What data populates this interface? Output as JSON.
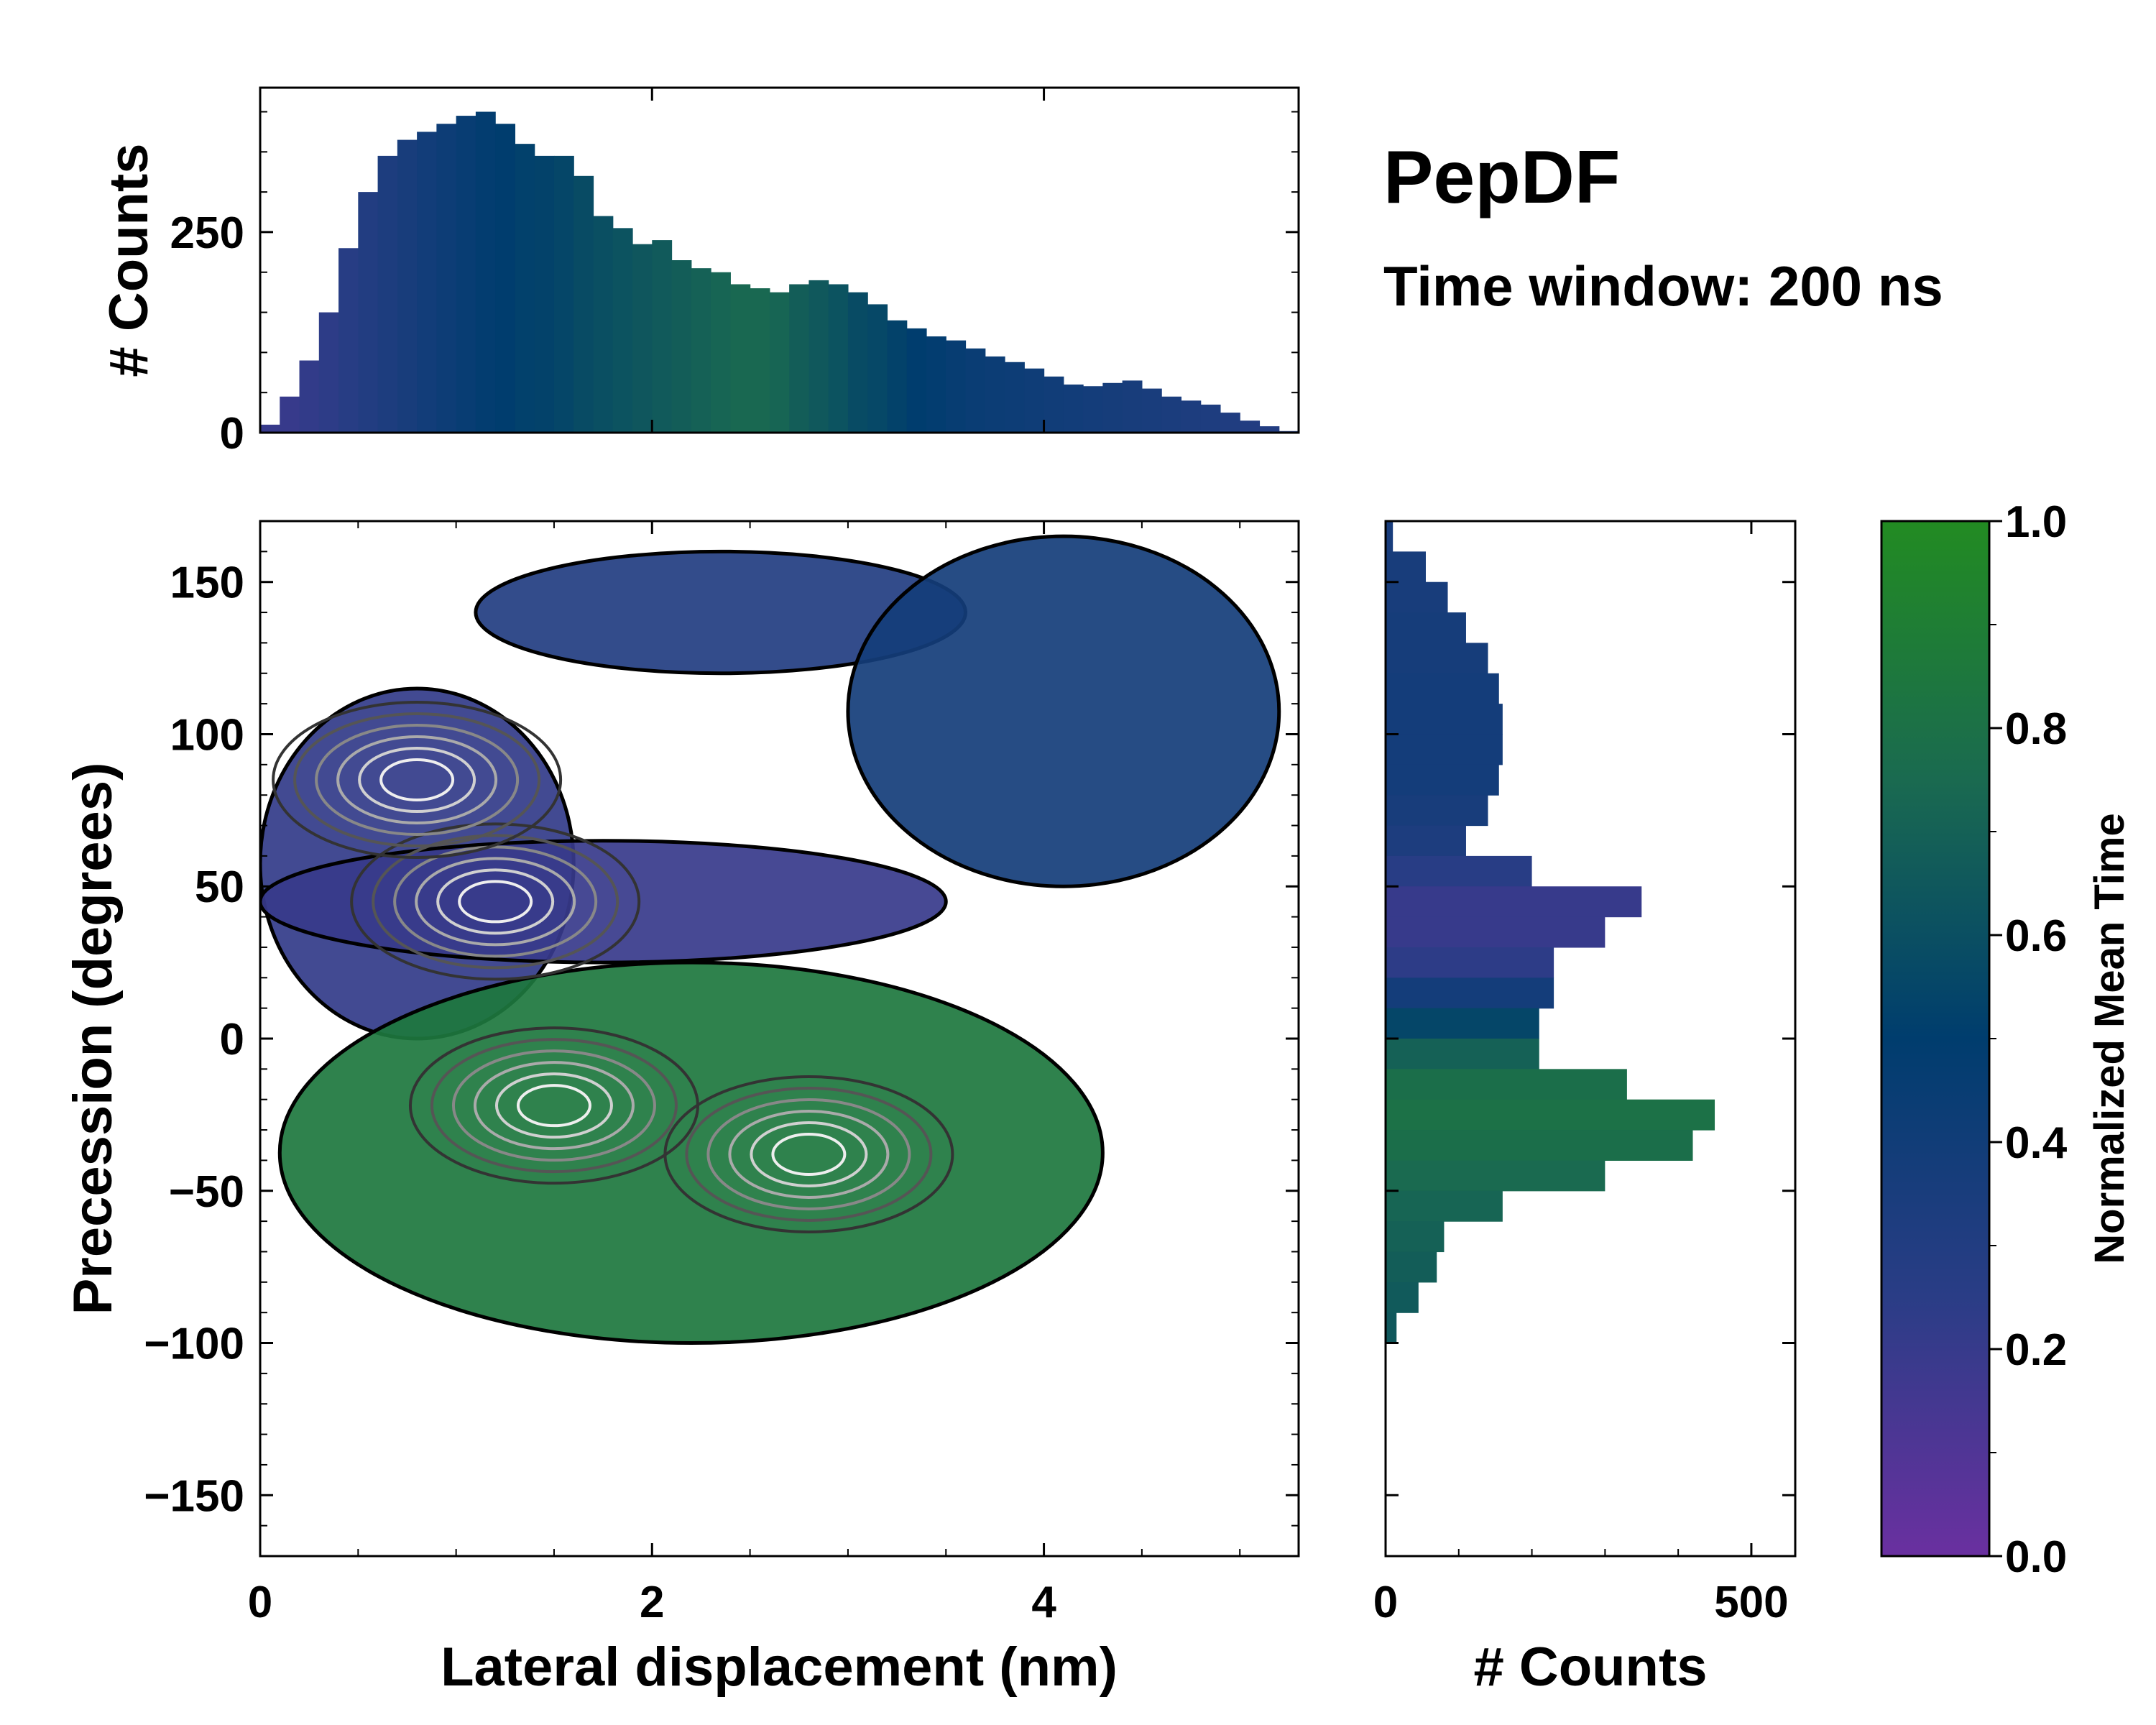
{
  "chart_data": {
    "type": "heatmap",
    "title": "PepDF",
    "subtitle": "Time window: 200 ns",
    "main": {
      "xlabel": "Lateral displacement (nm)",
      "ylabel": "Precession (degrees)",
      "xlim": [
        0,
        5.3
      ],
      "ylim": [
        -170,
        170
      ],
      "xticks": [
        0,
        2,
        4
      ],
      "xtick_labels": [
        "0",
        "2",
        "4"
      ],
      "yticks": [
        150,
        100,
        50,
        0,
        -50,
        -100,
        -150
      ],
      "ytick_labels": [
        "150",
        "100",
        "50",
        "0",
        "−50",
        "−100",
        "−150"
      ],
      "regions": [
        {
          "name": "upper-left purple lobe",
          "mean_time": 0.22,
          "x_range": [
            0.0,
            1.6
          ],
          "y_range": [
            0,
            115
          ]
        },
        {
          "name": "upper-middle band",
          "mean_time": 0.3,
          "x_range": [
            1.1,
            3.6
          ],
          "y_range": [
            120,
            160
          ]
        },
        {
          "name": "upper-right blue lobe",
          "mean_time": 0.38,
          "x_range": [
            3.0,
            5.2
          ],
          "y_range": [
            50,
            165
          ]
        },
        {
          "name": "middle purple band",
          "mean_time": 0.2,
          "x_range": [
            0.0,
            3.5
          ],
          "y_range": [
            25,
            65
          ]
        },
        {
          "name": "lower green lobe",
          "mean_time": 0.85,
          "x_range": [
            0.1,
            4.3
          ],
          "y_range": [
            -100,
            25
          ]
        }
      ],
      "density_peaks": [
        {
          "x": 1.2,
          "y": 45
        },
        {
          "x": 1.5,
          "y": -22
        },
        {
          "x": 2.8,
          "y": -38
        },
        {
          "x": 0.8,
          "y": 85
        }
      ]
    },
    "top_histogram": {
      "ylabel": "# Counts",
      "yticks": [
        0,
        250
      ],
      "ylim": [
        0,
        430
      ],
      "x": [
        0.0,
        0.1,
        0.2,
        0.3,
        0.4,
        0.5,
        0.6,
        0.7,
        0.8,
        0.9,
        1.0,
        1.1,
        1.2,
        1.3,
        1.4,
        1.5,
        1.6,
        1.7,
        1.8,
        1.9,
        2.0,
        2.1,
        2.2,
        2.3,
        2.4,
        2.5,
        2.6,
        2.7,
        2.8,
        2.9,
        3.0,
        3.1,
        3.2,
        3.3,
        3.4,
        3.5,
        3.6,
        3.7,
        3.8,
        3.9,
        4.0,
        4.1,
        4.2,
        4.3,
        4.4,
        4.5,
        4.6,
        4.7,
        4.8,
        4.9,
        5.0,
        5.1,
        5.2
      ],
      "values": [
        10,
        45,
        90,
        150,
        230,
        300,
        345,
        365,
        375,
        385,
        395,
        400,
        385,
        360,
        345,
        345,
        320,
        270,
        255,
        235,
        240,
        215,
        205,
        200,
        185,
        180,
        175,
        185,
        190,
        185,
        175,
        160,
        140,
        130,
        120,
        115,
        105,
        95,
        88,
        80,
        70,
        60,
        58,
        62,
        65,
        55,
        45,
        40,
        35,
        25,
        15,
        8,
        2
      ],
      "mean_time": [
        0.2,
        0.2,
        0.22,
        0.24,
        0.27,
        0.3,
        0.33,
        0.36,
        0.39,
        0.42,
        0.45,
        0.48,
        0.5,
        0.52,
        0.53,
        0.55,
        0.58,
        0.6,
        0.62,
        0.64,
        0.66,
        0.68,
        0.7,
        0.72,
        0.74,
        0.74,
        0.72,
        0.68,
        0.65,
        0.62,
        0.58,
        0.56,
        0.53,
        0.5,
        0.48,
        0.46,
        0.44,
        0.43,
        0.42,
        0.41,
        0.4,
        0.39,
        0.38,
        0.37,
        0.36,
        0.35,
        0.34,
        0.33,
        0.32,
        0.31,
        0.3,
        0.3,
        0.3
      ]
    },
    "right_histogram": {
      "xlabel": "# Counts",
      "xticks": [
        0,
        500
      ],
      "xlim": [
        0,
        560
      ],
      "y": [
        165,
        155,
        145,
        135,
        125,
        115,
        105,
        95,
        85,
        75,
        65,
        55,
        45,
        35,
        25,
        15,
        5,
        -5,
        -15,
        -25,
        -35,
        -45,
        -55,
        -65,
        -75,
        -85,
        -95
      ],
      "values": [
        10,
        55,
        85,
        110,
        140,
        155,
        160,
        160,
        155,
        140,
        110,
        200,
        350,
        300,
        230,
        230,
        210,
        210,
        330,
        450,
        420,
        300,
        160,
        80,
        70,
        45,
        15
      ],
      "mean_time": [
        0.35,
        0.36,
        0.36,
        0.37,
        0.37,
        0.38,
        0.38,
        0.38,
        0.38,
        0.36,
        0.33,
        0.26,
        0.2,
        0.2,
        0.24,
        0.38,
        0.55,
        0.7,
        0.78,
        0.8,
        0.78,
        0.75,
        0.72,
        0.7,
        0.68,
        0.66,
        0.65
      ]
    },
    "colorbar": {
      "label": "Normalized Mean Time",
      "ticks": [
        0.0,
        0.2,
        0.4,
        0.6,
        0.8,
        1.0
      ],
      "tick_labels": [
        "0.0",
        "0.2",
        "0.4",
        "0.6",
        "0.8",
        "1.0"
      ],
      "vmin": 0.0,
      "vmax": 1.0,
      "colors": [
        "#6a30a0",
        "#2a3d86",
        "#003d6e",
        "#1a6a50",
        "#228b22"
      ]
    }
  }
}
